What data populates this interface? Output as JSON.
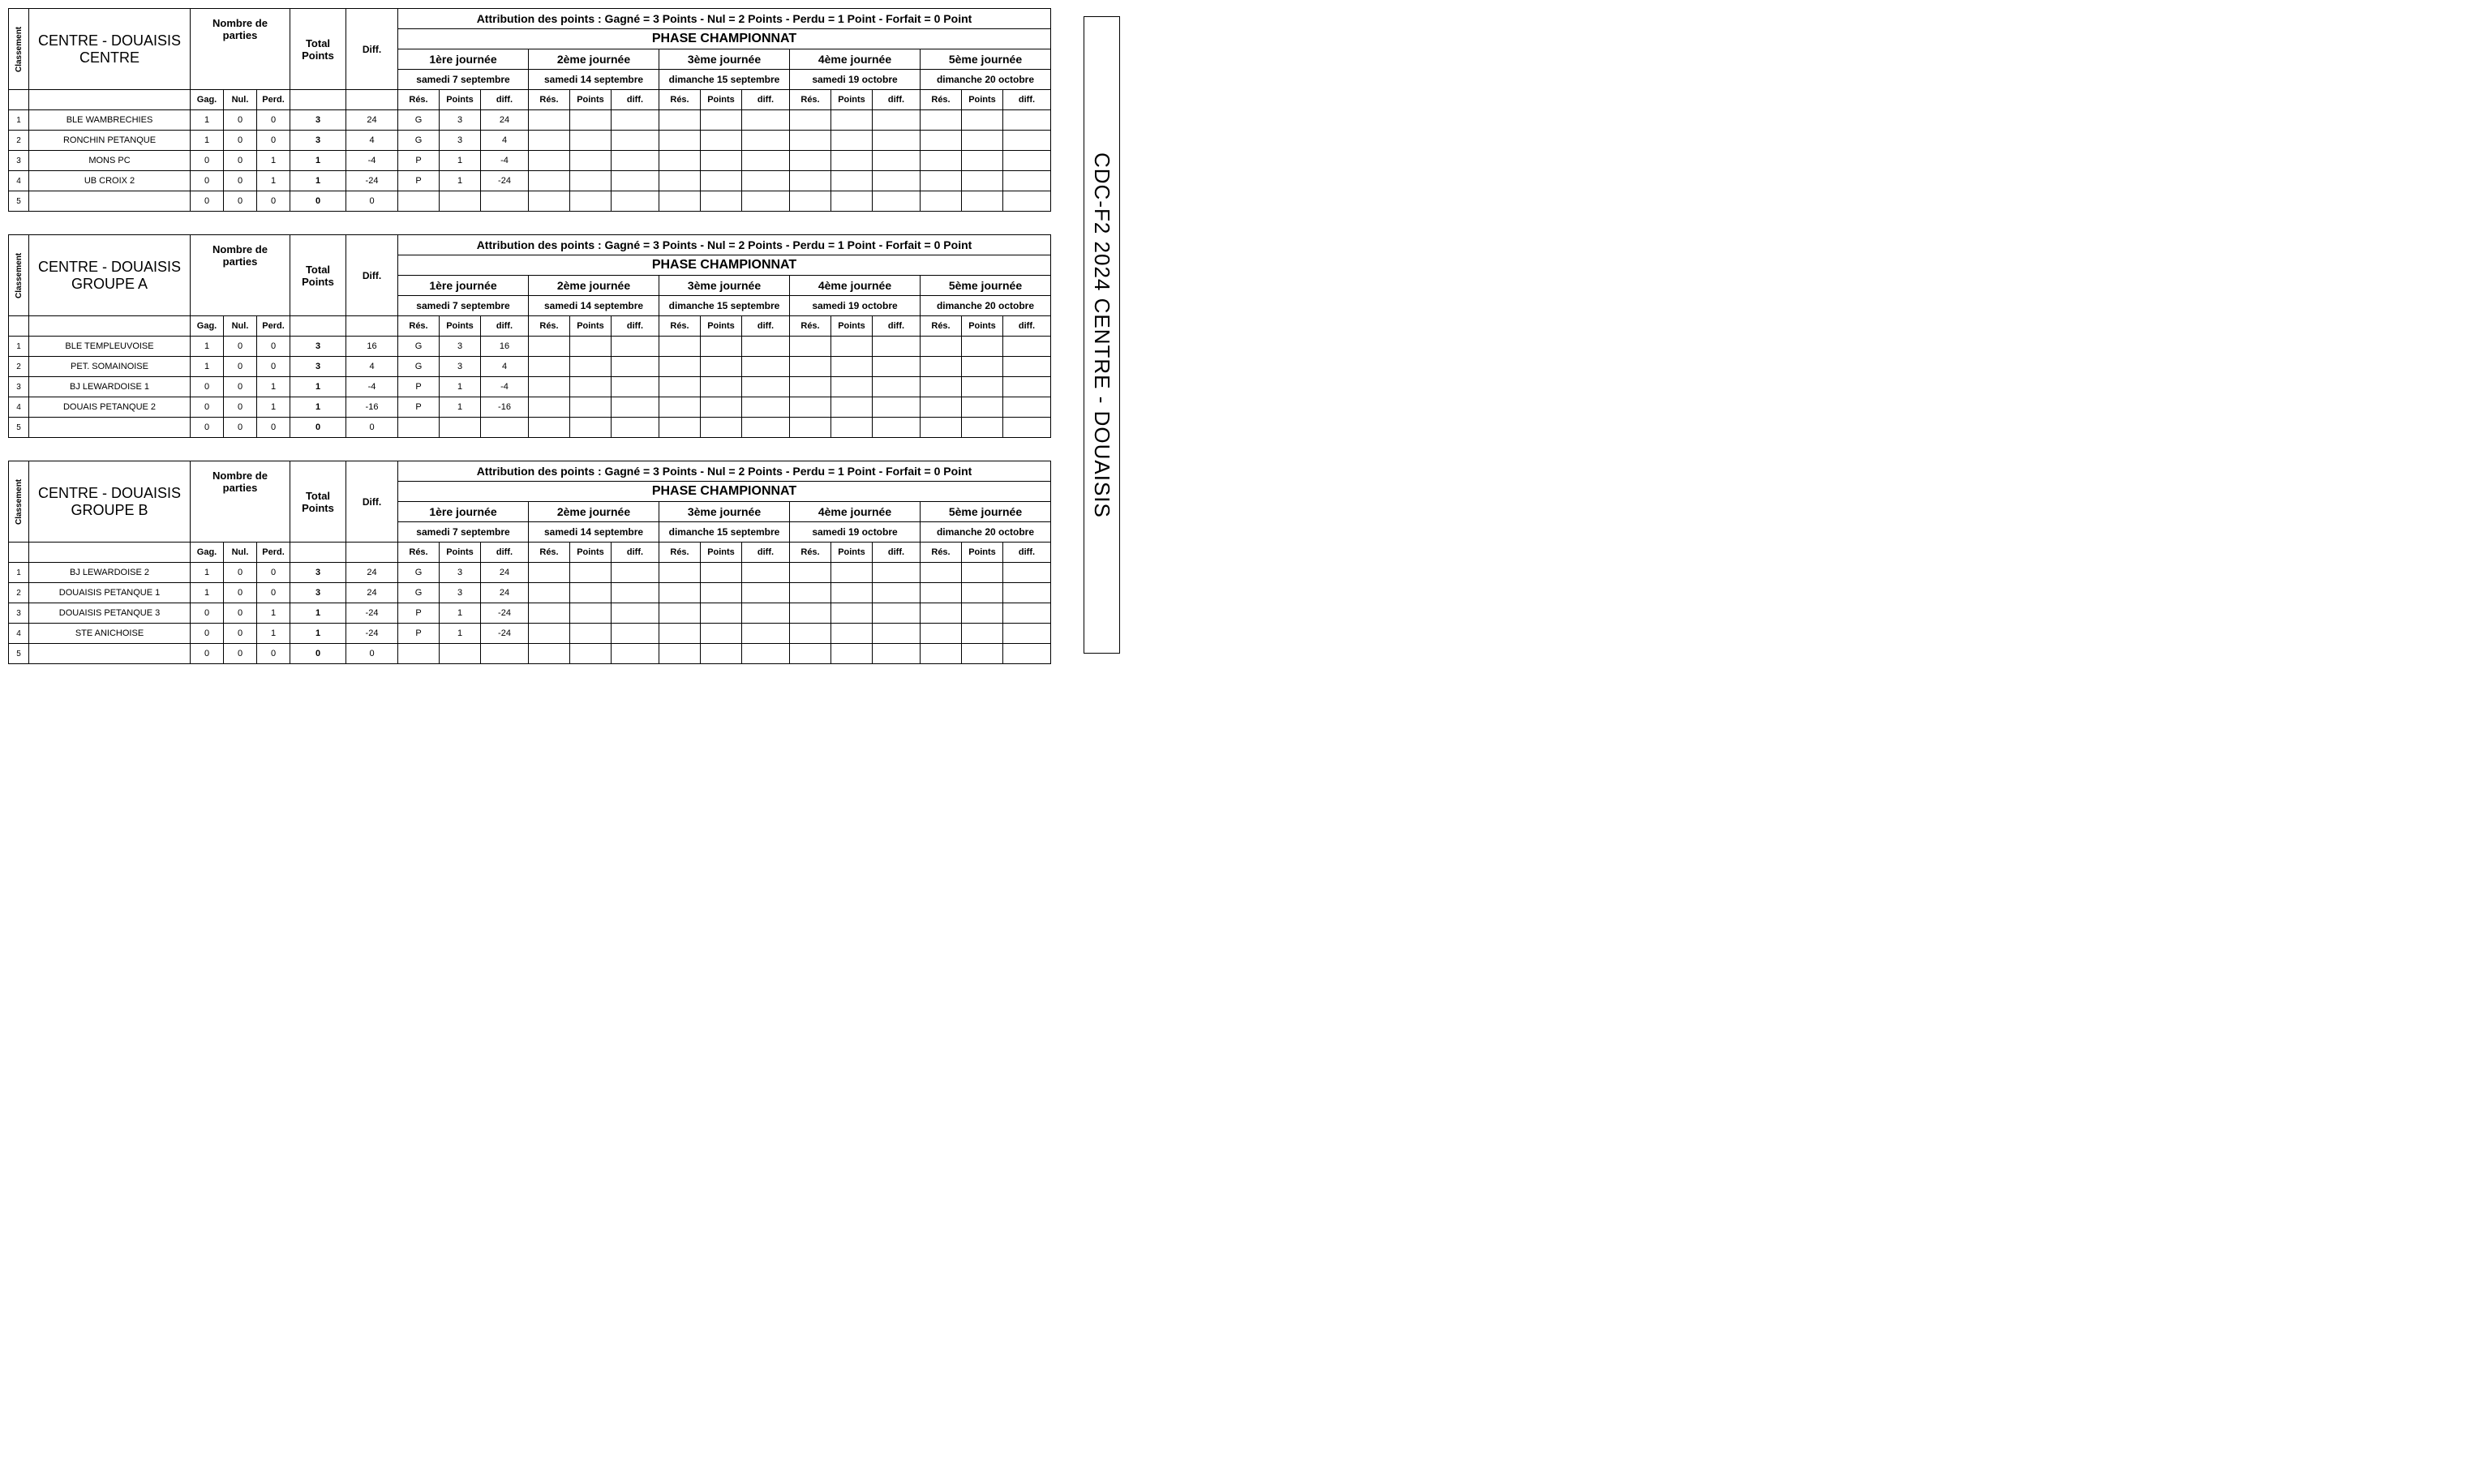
{
  "side_title": "CDC-F2 2024 CENTRE - DOUAISIS",
  "labels": {
    "classement": "Classement",
    "nombre_parties": "Nombre de parties",
    "gag": "Gag.",
    "nul": "Nul.",
    "perd": "Perd.",
    "total_points": "Total Points",
    "diff": "Diff.",
    "attribution": "Attribution des points : Gagné = 3 Points - Nul = 2 Points - Perdu = 1 Point - Forfait = 0 Point",
    "phase": "PHASE CHAMPIONNAT",
    "res": "Rés.",
    "points": "Points",
    "diff_s": "diff."
  },
  "journees": [
    {
      "title": "1ère journée",
      "date": "samedi 7 septembre"
    },
    {
      "title": "2ème journée",
      "date": "samedi 14 septembre"
    },
    {
      "title": "3ème journée",
      "date": "dimanche 15 septembre"
    },
    {
      "title": "4ème journée",
      "date": "samedi 19 octobre"
    },
    {
      "title": "5ème journée",
      "date": "dimanche 20 octobre"
    }
  ],
  "tables": [
    {
      "title": "CENTRE - DOUAISIS CENTRE",
      "rows": [
        {
          "rank": "1",
          "team": "BLE WAMBRECHIES",
          "g": "1",
          "n": "0",
          "p": "0",
          "tot": "3",
          "diff": "24",
          "j1": {
            "r": "G",
            "p": "3",
            "d": "24"
          }
        },
        {
          "rank": "2",
          "team": "RONCHIN PETANQUE",
          "g": "1",
          "n": "0",
          "p": "0",
          "tot": "3",
          "diff": "4",
          "j1": {
            "r": "G",
            "p": "3",
            "d": "4"
          }
        },
        {
          "rank": "3",
          "team": "MONS PC",
          "g": "0",
          "n": "0",
          "p": "1",
          "tot": "1",
          "diff": "-4",
          "j1": {
            "r": "P",
            "p": "1",
            "d": "-4"
          }
        },
        {
          "rank": "4",
          "team": "UB CROIX 2",
          "g": "0",
          "n": "0",
          "p": "1",
          "tot": "1",
          "diff": "-24",
          "j1": {
            "r": "P",
            "p": "1",
            "d": "-24"
          }
        },
        {
          "rank": "5",
          "team": "",
          "g": "0",
          "n": "0",
          "p": "0",
          "tot": "0",
          "diff": "0",
          "j1": null
        }
      ]
    },
    {
      "title": "CENTRE - DOUAISIS GROUPE A",
      "rows": [
        {
          "rank": "1",
          "team": "BLE TEMPLEUVOISE",
          "g": "1",
          "n": "0",
          "p": "0",
          "tot": "3",
          "diff": "16",
          "j1": {
            "r": "G",
            "p": "3",
            "d": "16"
          }
        },
        {
          "rank": "2",
          "team": "PET. SOMAINOISE",
          "g": "1",
          "n": "0",
          "p": "0",
          "tot": "3",
          "diff": "4",
          "j1": {
            "r": "G",
            "p": "3",
            "d": "4"
          }
        },
        {
          "rank": "3",
          "team": "BJ LEWARDOISE 1",
          "g": "0",
          "n": "0",
          "p": "1",
          "tot": "1",
          "diff": "-4",
          "j1": {
            "r": "P",
            "p": "1",
            "d": "-4"
          }
        },
        {
          "rank": "4",
          "team": "DOUAIS PETANQUE 2",
          "g": "0",
          "n": "0",
          "p": "1",
          "tot": "1",
          "diff": "-16",
          "j1": {
            "r": "P",
            "p": "1",
            "d": "-16"
          }
        },
        {
          "rank": "5",
          "team": "",
          "g": "0",
          "n": "0",
          "p": "0",
          "tot": "0",
          "diff": "0",
          "j1": null
        }
      ]
    },
    {
      "title": "CENTRE - DOUAISIS GROUPE B",
      "rows": [
        {
          "rank": "1",
          "team": "BJ LEWARDOISE 2",
          "g": "1",
          "n": "0",
          "p": "0",
          "tot": "3",
          "diff": "24",
          "j1": {
            "r": "G",
            "p": "3",
            "d": "24"
          }
        },
        {
          "rank": "2",
          "team": "DOUAISIS PETANQUE 1",
          "g": "1",
          "n": "0",
          "p": "0",
          "tot": "3",
          "diff": "24",
          "j1": {
            "r": "G",
            "p": "3",
            "d": "24"
          }
        },
        {
          "rank": "3",
          "team": "DOUAISIS PETANQUE 3",
          "g": "0",
          "n": "0",
          "p": "1",
          "tot": "1",
          "diff": "-24",
          "j1": {
            "r": "P",
            "p": "1",
            "d": "-24"
          }
        },
        {
          "rank": "4",
          "team": "STE ANICHOISE",
          "g": "0",
          "n": "0",
          "p": "1",
          "tot": "1",
          "diff": "-24",
          "j1": {
            "r": "P",
            "p": "1",
            "d": "-24"
          }
        },
        {
          "rank": "5",
          "team": "",
          "g": "0",
          "n": "0",
          "p": "0",
          "tot": "0",
          "diff": "0",
          "j1": null
        }
      ]
    }
  ]
}
